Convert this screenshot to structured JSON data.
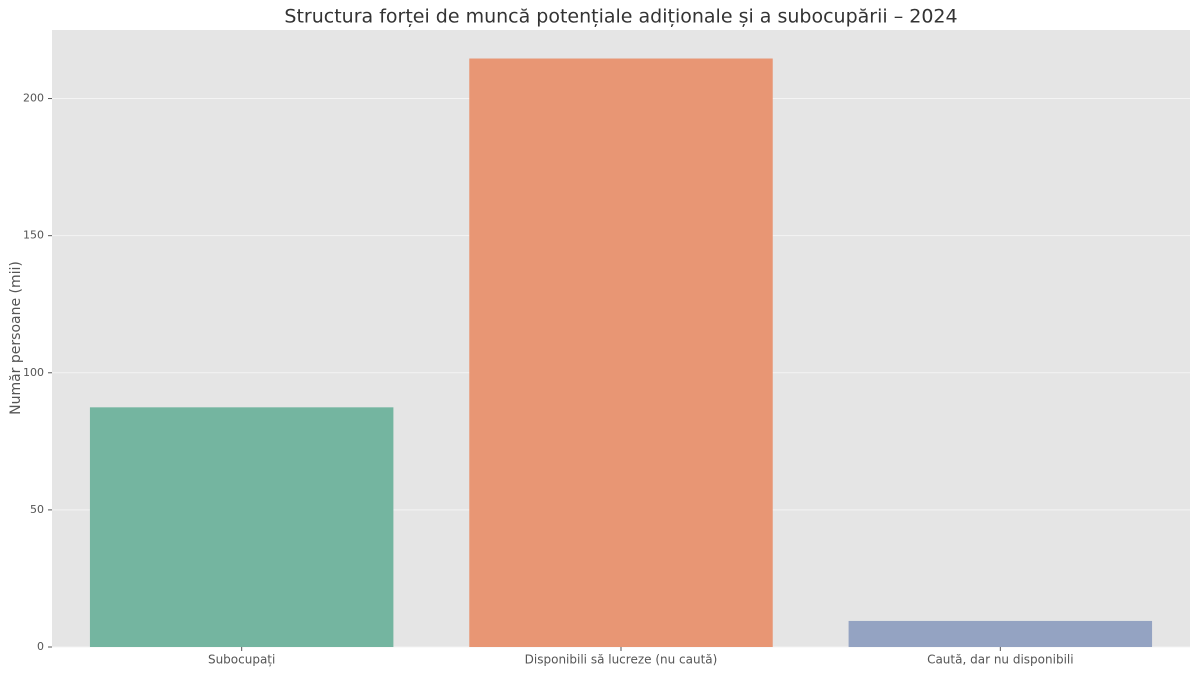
{
  "chart_data": {
    "type": "bar",
    "title": "Structura forței de muncă potențiale adiționale și a subocupării – 2024",
    "y_label": "Număr persoane (mii)",
    "categories": [
      "Subocupați",
      "Disponibili să lucreze (nu caută)",
      "Caută, dar nu disponibili"
    ],
    "values": [
      87.4,
      214.6,
      9.5
    ],
    "colors": [
      "#74b5a0",
      "#e89674",
      "#94a3c2"
    ],
    "ylim": [
      0,
      225
    ],
    "yticks": [
      0,
      50,
      100,
      150,
      200
    ],
    "grid": true
  }
}
